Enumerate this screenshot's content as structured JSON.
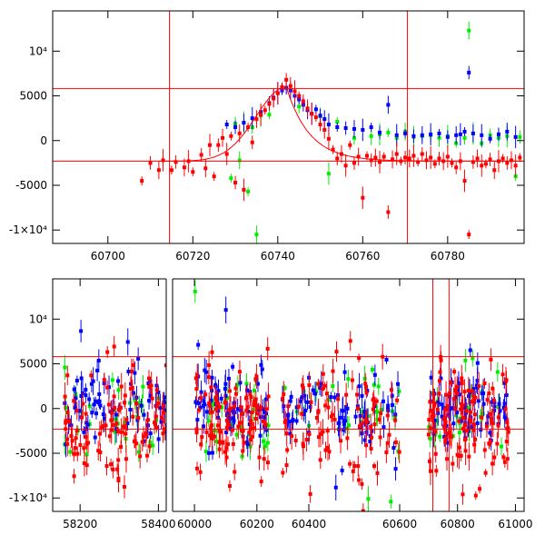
{
  "colors": {
    "green": "#00ee00",
    "blue": "#0000ff",
    "red": "#ff0000",
    "frame": "#000000",
    "background": "#ffffff"
  },
  "chart_data": [
    {
      "type": "scatter",
      "title": "",
      "xlabel": "",
      "ylabel": "",
      "xlim": [
        60687,
        60798
      ],
      "ylim": [
        -11500,
        14500
      ],
      "xticks": [
        60700,
        60720,
        60740,
        60760,
        60780
      ],
      "xtick_labels": [
        "60700",
        "60720",
        "60740",
        "60760",
        "60780"
      ],
      "yticks": [
        -10000,
        -5000,
        0,
        5000,
        10000
      ],
      "ytick_labels": [
        "-1×10⁴",
        "-5000",
        "0",
        "5000",
        "10⁴"
      ],
      "reference_lines": {
        "horizontal": [
          5800,
          -2300
        ],
        "vertical": [
          60714.5,
          60770.5
        ]
      },
      "series": [
        {
          "name": "green",
          "x": [
            60729,
            60730,
            60731,
            60732,
            60733,
            60734,
            60735,
            60736,
            60738,
            60745,
            60750,
            60752,
            60754,
            60758,
            60762,
            60764,
            60766,
            60768,
            60770,
            60772,
            60774,
            60776,
            60778,
            60780,
            60782,
            60784,
            60785,
            60786,
            60788,
            60790,
            60792,
            60794,
            60796,
            60797
          ],
          "y": [
            -4200,
            1900,
            -2200,
            2000,
            -5700,
            1500,
            -10500,
            2800,
            2900,
            3800,
            2700,
            -3700,
            2100,
            300,
            500,
            700,
            900,
            300,
            1000,
            400,
            500,
            600,
            300,
            500,
            -300,
            300,
            12300,
            800,
            -300,
            600,
            300,
            500,
            -4000,
            400
          ]
        },
        {
          "name": "blue",
          "x": [
            60728,
            60730,
            60732,
            60734,
            60736,
            60738,
            60739,
            60740,
            60741,
            60742,
            60743,
            60744,
            60745,
            60746,
            60747,
            60748,
            60749,
            60750,
            60751,
            60752,
            60754,
            60756,
            60758,
            60760,
            60762,
            60764,
            60766,
            60768,
            60770,
            60772,
            60774,
            60776,
            60778,
            60780,
            60782,
            60783,
            60784,
            60785,
            60786,
            60788,
            60790,
            60792,
            60794,
            60796
          ],
          "y": [
            1800,
            1500,
            2000,
            2500,
            3200,
            4200,
            4800,
            5300,
            5600,
            5900,
            5600,
            5000,
            4600,
            4000,
            3400,
            3000,
            3500,
            2800,
            2400,
            1800,
            1500,
            1400,
            1300,
            1200,
            1500,
            900,
            4000,
            600,
            800,
            500,
            600,
            700,
            800,
            400,
            600,
            700,
            1000,
            7600,
            800,
            600,
            200,
            700,
            1000,
            400
          ]
        },
        {
          "name": "red",
          "x": [
            60708,
            60710,
            60712,
            60713,
            60715,
            60716,
            60718,
            60719,
            60720,
            60722,
            60723,
            60724,
            60725,
            60726,
            60727,
            60728,
            60729,
            60730,
            60731,
            60732,
            60733,
            60734,
            60735,
            60736,
            60737,
            60738,
            60739,
            60740,
            60741,
            60742,
            60743,
            60744,
            60745,
            60746,
            60747,
            60748,
            60749,
            60750,
            60751,
            60752,
            60753,
            60754,
            60755,
            60756,
            60757,
            60758,
            60759,
            60760,
            60761,
            60762,
            60763,
            60764,
            60765,
            60766,
            60767,
            60768,
            60769,
            60770,
            60771,
            60772,
            60773,
            60774,
            60775,
            60776,
            60777,
            60778,
            60779,
            60780,
            60781,
            60782,
            60783,
            60784,
            60785,
            60786,
            60787,
            60788,
            60789,
            60790,
            60791,
            60792,
            60793,
            60794,
            60795,
            60796,
            60797
          ],
          "y": [
            -4500,
            -2500,
            -3300,
            -2200,
            -3300,
            -2400,
            -3000,
            -2300,
            -3500,
            -1600,
            -3100,
            -500,
            -4000,
            -500,
            300,
            -1500,
            500,
            -4700,
            800,
            -5500,
            1500,
            -200,
            2400,
            2900,
            3400,
            4100,
            4700,
            5300,
            6000,
            6800,
            6100,
            5500,
            5000,
            4400,
            3600,
            3000,
            2600,
            1800,
            1200,
            200,
            -1000,
            -2000,
            -1500,
            -2800,
            -500,
            -2500,
            -1800,
            -6400,
            -1700,
            -2200,
            -1900,
            -2400,
            -1800,
            -8000,
            -2100,
            -1500,
            -2300,
            -1900,
            -2000,
            -1700,
            -2400,
            -1500,
            -2200,
            -1900,
            -2600,
            -2000,
            -2300,
            -1800,
            -2500,
            -3000,
            -2300,
            -4500,
            -10500,
            -2400,
            -2000,
            -2800,
            -2600,
            -2100,
            -3300,
            -2300,
            -2000,
            -2500,
            -2200,
            -2800,
            -1900
          ]
        }
      ]
    },
    {
      "type": "scatter",
      "title": "",
      "xlabel": "",
      "ylabel": "",
      "xlim": [
        58130,
        61030
      ],
      "ylim": [
        -11500,
        14500
      ],
      "xticks": [
        58200,
        58400,
        60000,
        60200,
        60400,
        60600,
        60800,
        61000
      ],
      "xtick_labels": [
        "58200",
        "58400",
        "60000",
        "60200",
        "60400",
        "60600",
        "60800",
        "61000"
      ],
      "yticks": [
        -10000,
        -5000,
        0,
        5000,
        10000
      ],
      "ytick_labels": [
        "-1×10⁴",
        "-5000",
        "0",
        "5000",
        "10⁴"
      ],
      "reference_lines": {
        "horizontal": [
          5800,
          -2300
        ],
        "vertical": [
          60714.5,
          60770.5
        ]
      },
      "axis_breaks": [
        {
          "from": 58420,
          "to": 59930,
          "note": "broken axis between 58400 and 60000"
        },
        {
          "from": 60250,
          "to": 60320,
          "note": "gap between observing seasons"
        },
        {
          "from": 60600,
          "to": 60680,
          "note": "gap between observing seasons"
        }
      ],
      "segments_x_range": [
        [
          58160,
          58420
        ],
        [
          60000,
          60240
        ],
        [
          60340,
          60600
        ],
        [
          60700,
          60980
        ]
      ],
      "series_summary": [
        {
          "name": "green",
          "approx_mean": -500,
          "approx_spread": 3500
        },
        {
          "name": "blue",
          "approx_mean": 0,
          "approx_spread": 2500
        },
        {
          "name": "red",
          "approx_mean": -1500,
          "approx_spread": 4000
        }
      ],
      "flare_peak": {
        "x": 60742,
        "y": 6500
      }
    }
  ]
}
